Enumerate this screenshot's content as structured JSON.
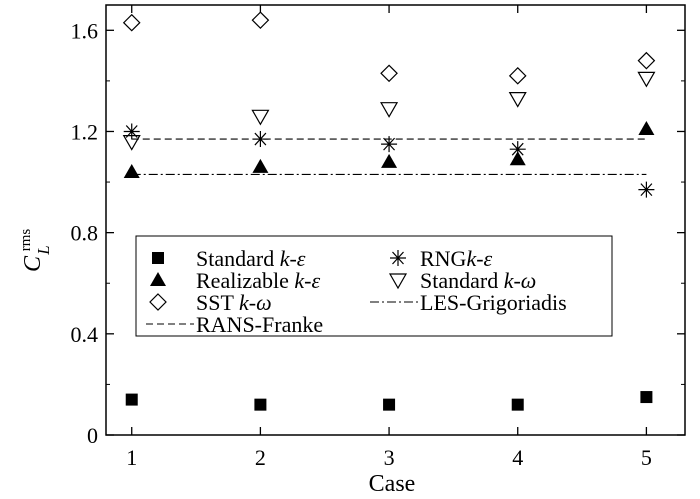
{
  "chart_data": {
    "type": "scatter",
    "xlabel": "Case",
    "ylabel": "C_L^rms",
    "ylabel_main": "C",
    "ylabel_sub": "L",
    "ylabel_sup": "rms",
    "x": [
      1,
      2,
      3,
      4,
      5
    ],
    "xlim": [
      0.8,
      5.3
    ],
    "ylim": [
      0,
      1.7
    ],
    "xticks": [
      1,
      2,
      3,
      4,
      5
    ],
    "yticks": [
      0,
      0.4,
      0.8,
      1.2,
      1.6
    ],
    "xtick_labels": [
      "1",
      "2",
      "3",
      "4",
      "5"
    ],
    "ytick_labels": [
      "0",
      "0.4",
      "0.8",
      "1.2",
      "1.6"
    ],
    "grid": false,
    "legend_placement": "center-left",
    "series": [
      {
        "name": "Standard k-ε",
        "label_parts": [
          "Standard ",
          "k",
          "-",
          "ε"
        ],
        "marker": "filled-square",
        "values": [
          0.14,
          0.12,
          0.12,
          0.12,
          0.15
        ]
      },
      {
        "name": "RNG k-ε",
        "label_parts": [
          "RNG",
          "k",
          "-",
          "ε"
        ],
        "marker": "asterisk",
        "values": [
          1.2,
          1.17,
          1.15,
          1.13,
          0.97
        ]
      },
      {
        "name": "Realizable k-ε",
        "label_parts": [
          "Realizable ",
          "k",
          "-",
          "ε"
        ],
        "marker": "filled-triangle-up",
        "values": [
          1.04,
          1.06,
          1.08,
          1.09,
          1.21
        ]
      },
      {
        "name": "Standard k-ω",
        "label_parts": [
          "Standard ",
          "k",
          "-",
          "ω"
        ],
        "marker": "open-triangle-down",
        "values": [
          1.16,
          1.26,
          1.29,
          1.33,
          1.41
        ]
      },
      {
        "name": "SST k-ω",
        "label_parts": [
          "SST ",
          "k",
          "-",
          "ω"
        ],
        "marker": "open-diamond",
        "values": [
          1.63,
          1.64,
          1.43,
          1.42,
          1.48
        ]
      }
    ],
    "reference_lines": [
      {
        "name": "LES-Grigoriadis",
        "style": "dash-dot",
        "value": 1.03,
        "x_range": [
          1,
          5
        ]
      },
      {
        "name": "RANS-Franke",
        "style": "dashed",
        "value": 1.17,
        "x_range": [
          1,
          5
        ]
      }
    ]
  }
}
